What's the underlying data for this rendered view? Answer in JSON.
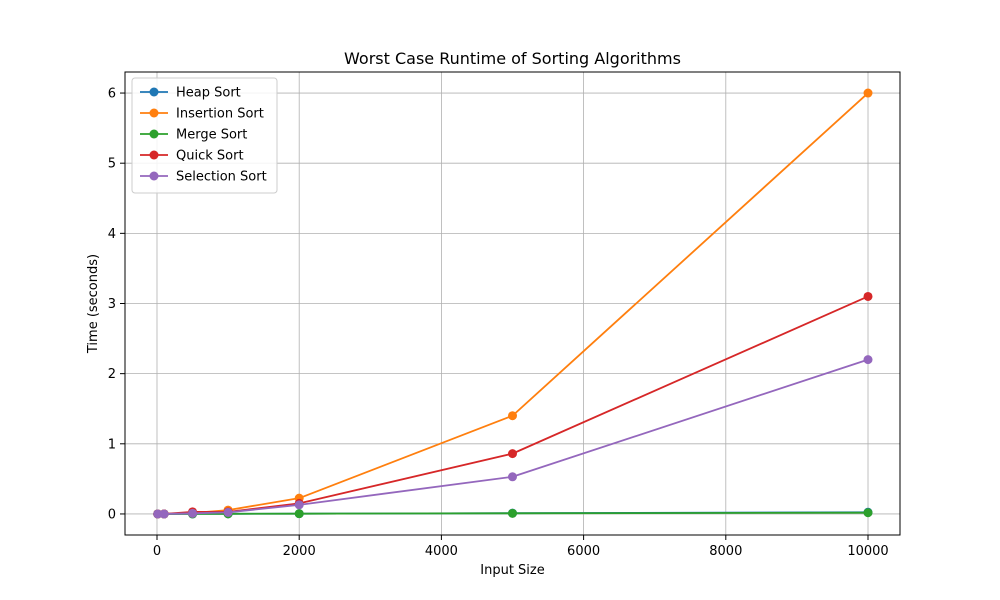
{
  "chart_data": {
    "type": "line",
    "title": "Worst Case Runtime of Sorting Algorithms",
    "xlabel": "Input Size",
    "ylabel": "Time (seconds)",
    "x": [
      10,
      100,
      500,
      1000,
      2000,
      5000,
      10000
    ],
    "xlim": [
      -450,
      10450
    ],
    "ylim": [
      -0.3,
      6.3
    ],
    "xticks": [
      0,
      2000,
      4000,
      6000,
      8000,
      10000
    ],
    "yticks": [
      0,
      1,
      2,
      3,
      4,
      5,
      6
    ],
    "grid": true,
    "legend_position": "top-left",
    "series": [
      {
        "name": "Heap Sort",
        "color": "#1f77b4",
        "values": [
          0.0,
          0.0,
          0.001,
          0.002,
          0.004,
          0.011,
          0.024
        ]
      },
      {
        "name": "Insertion Sort",
        "color": "#ff7f0e",
        "values": [
          0.0,
          0.0,
          0.014,
          0.055,
          0.225,
          1.4,
          6.0
        ]
      },
      {
        "name": "Merge Sort",
        "color": "#2ca02c",
        "values": [
          0.0,
          0.0,
          0.001,
          0.002,
          0.004,
          0.009,
          0.018
        ]
      },
      {
        "name": "Quick Sort",
        "color": "#d62728",
        "values": [
          0.0,
          0.001,
          0.03,
          0.03,
          0.15,
          0.86,
          3.1
        ]
      },
      {
        "name": "Selection Sort",
        "color": "#9467bd",
        "values": [
          0.0,
          0.0,
          0.009,
          0.022,
          0.13,
          0.53,
          2.2
        ]
      }
    ]
  }
}
